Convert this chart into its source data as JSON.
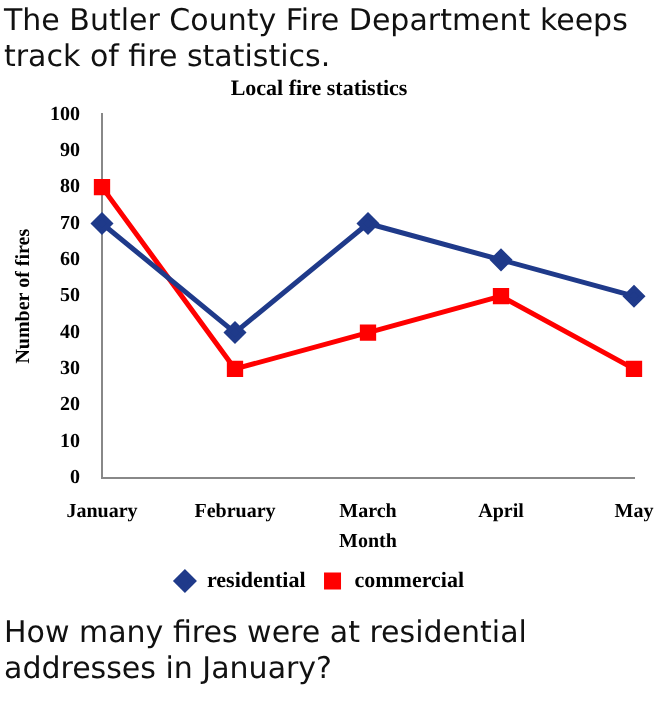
{
  "chart_data": {
    "type": "line",
    "title": "Local fire statistics",
    "xlabel": "Month",
    "ylabel": "Number of fires",
    "annotations": [
      "The Butler County Fire Department keeps track of fire statistics.",
      "How many fires were at residential addresses in January?"
    ],
    "categories": [
      "January",
      "February",
      "March",
      "April",
      "May"
    ],
    "series": [
      {
        "name": "residential",
        "color": "#1f3a8a",
        "values": [
          70,
          40,
          70,
          60,
          50
        ],
        "marker": "diamond"
      },
      {
        "name": "commercial",
        "color": "#ff0000",
        "values": [
          80,
          30,
          40,
          50,
          30
        ],
        "marker": "square"
      }
    ],
    "ylim": [
      0,
      100
    ],
    "yticks": [
      0,
      10,
      20,
      30,
      40,
      50,
      60,
      70,
      80,
      90,
      100
    ],
    "grid": false,
    "legend": "bottom",
    "line_style": "solid"
  }
}
